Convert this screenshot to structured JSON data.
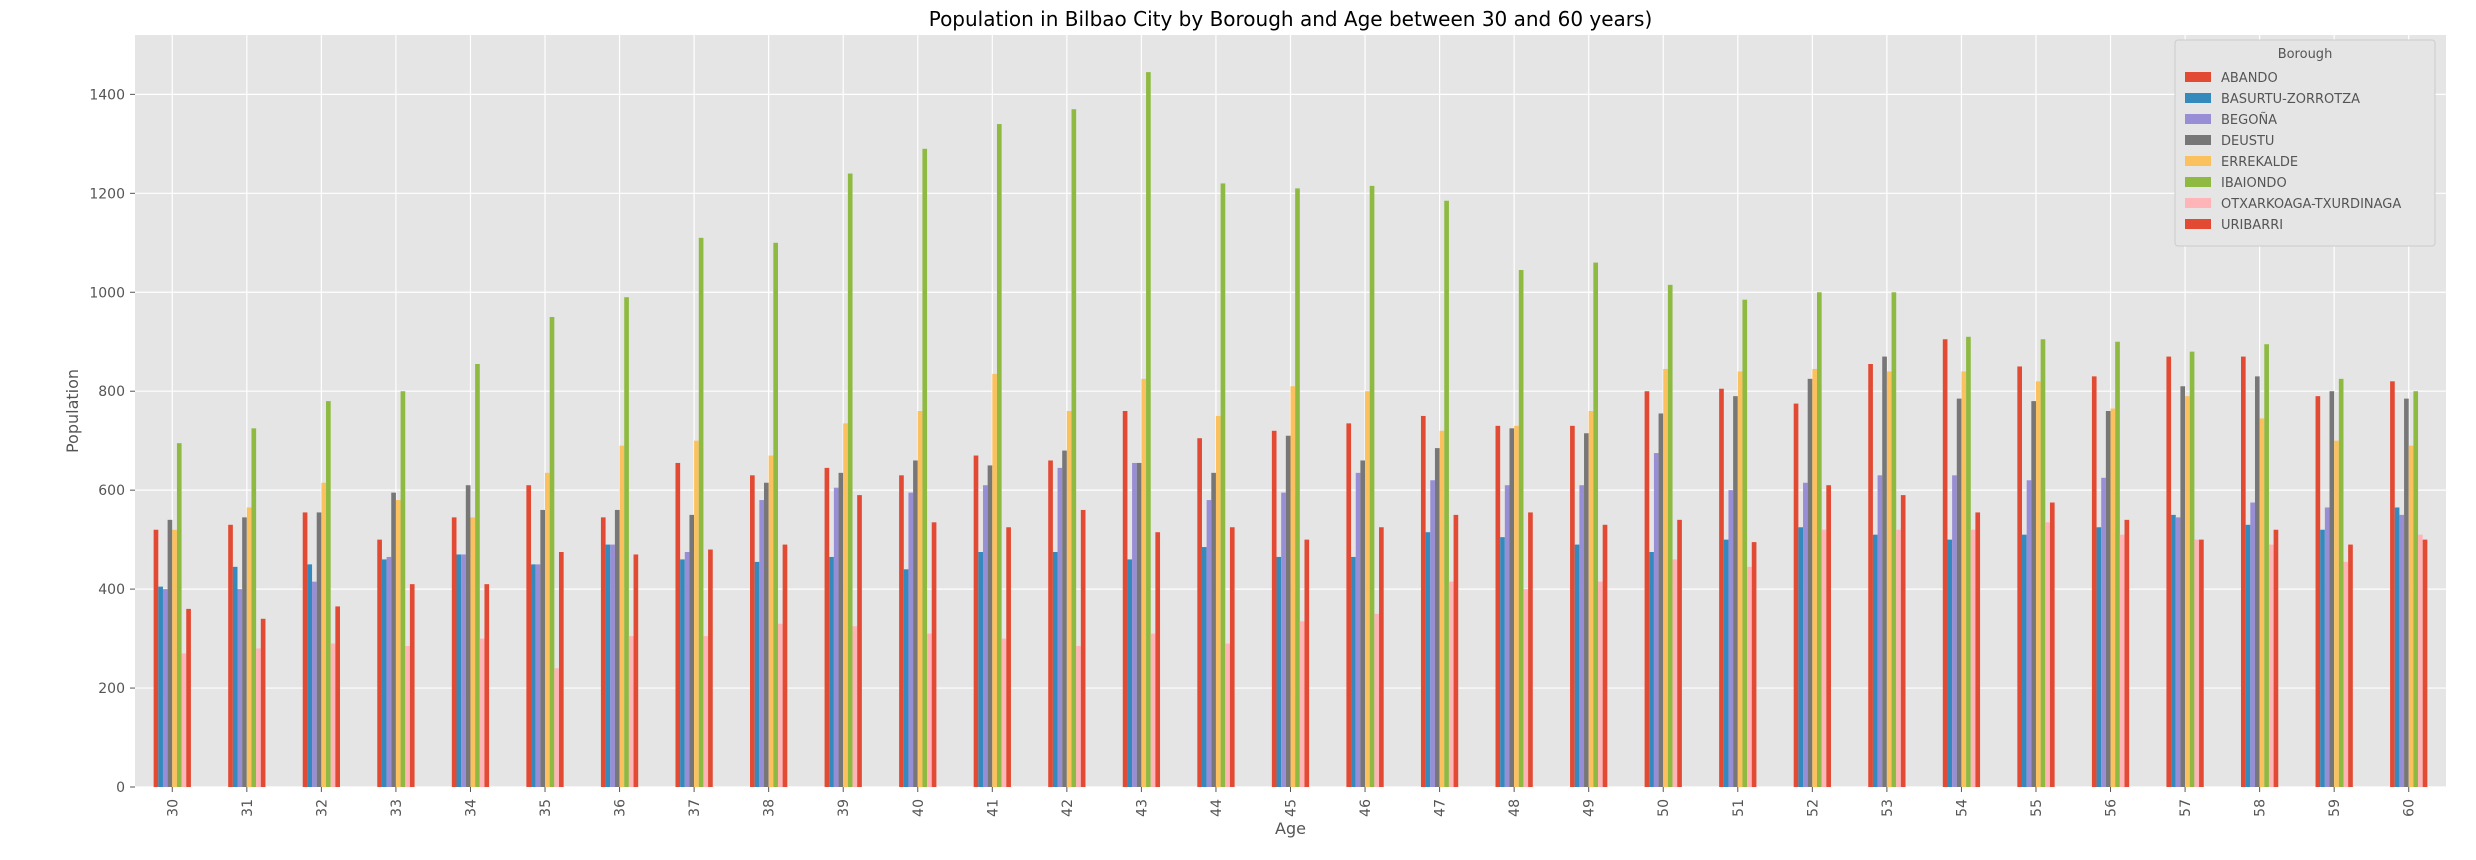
{
  "chart_data": {
    "type": "bar",
    "title": "Population in Bilbao City by Borough and Age between 30 and 60 years)",
    "xlabel": "Age",
    "ylabel": "Population",
    "ylim": [
      0,
      1520
    ],
    "yticks": [
      0,
      200,
      400,
      600,
      800,
      1000,
      1200,
      1400
    ],
    "grid": true,
    "legend_title": "Borough",
    "legend_position": "top-right",
    "categories": [
      "30",
      "31",
      "32",
      "33",
      "34",
      "35",
      "36",
      "37",
      "38",
      "39",
      "40",
      "41",
      "42",
      "43",
      "44",
      "45",
      "46",
      "47",
      "48",
      "49",
      "50",
      "51",
      "52",
      "53",
      "54",
      "55",
      "56",
      "57",
      "58",
      "59",
      "60"
    ],
    "series": [
      {
        "name": "ABANDO",
        "color": "#E24A33",
        "values": [
          520,
          530,
          555,
          500,
          545,
          610,
          545,
          655,
          630,
          645,
          630,
          670,
          660,
          760,
          705,
          720,
          735,
          750,
          730,
          730,
          800,
          805,
          775,
          855,
          905,
          850,
          830,
          870,
          870,
          790,
          820
        ]
      },
      {
        "name": "BASURTU-ZORROTZA",
        "color": "#348ABD",
        "values": [
          405,
          445,
          450,
          460,
          470,
          450,
          490,
          460,
          455,
          465,
          440,
          475,
          475,
          460,
          485,
          465,
          465,
          515,
          505,
          490,
          475,
          500,
          525,
          510,
          500,
          510,
          525,
          550,
          530,
          520,
          565
        ]
      },
      {
        "name": "BEGOÑA",
        "color": "#988ED5",
        "values": [
          400,
          400,
          415,
          465,
          470,
          450,
          490,
          475,
          580,
          605,
          595,
          610,
          645,
          655,
          580,
          595,
          635,
          620,
          610,
          610,
          675,
          600,
          615,
          630,
          630,
          620,
          625,
          545,
          575,
          565,
          550
        ]
      },
      {
        "name": "DEUSTU",
        "color": "#777777",
        "values": [
          540,
          545,
          555,
          595,
          610,
          560,
          560,
          550,
          615,
          635,
          660,
          650,
          680,
          655,
          635,
          710,
          660,
          685,
          725,
          715,
          755,
          790,
          825,
          870,
          785,
          780,
          760,
          810,
          830,
          800,
          785
        ]
      },
      {
        "name": "ERREKALDE",
        "color": "#FBC15E",
        "values": [
          520,
          565,
          615,
          580,
          545,
          635,
          690,
          700,
          670,
          735,
          760,
          835,
          760,
          825,
          750,
          810,
          800,
          720,
          730,
          760,
          845,
          840,
          845,
          840,
          840,
          820,
          765,
          790,
          745,
          700,
          690
        ]
      },
      {
        "name": "IBAIONDO",
        "color": "#8EBA42",
        "values": [
          695,
          725,
          780,
          800,
          855,
          950,
          990,
          1110,
          1100,
          1240,
          1290,
          1340,
          1370,
          1445,
          1220,
          1210,
          1215,
          1185,
          1045,
          1060,
          1015,
          985,
          1000,
          1000,
          910,
          905,
          900,
          880,
          895,
          825,
          800
        ]
      },
      {
        "name": "OTXARKOAGA-TXURDINAGA",
        "color": "#FFB5B8",
        "values": [
          270,
          280,
          290,
          285,
          300,
          240,
          305,
          305,
          330,
          325,
          310,
          300,
          285,
          310,
          290,
          335,
          350,
          415,
          400,
          415,
          460,
          445,
          520,
          520,
          520,
          535,
          510,
          500,
          490,
          455,
          510
        ]
      },
      {
        "name": "URIBARRI",
        "color": "#E24A33",
        "values": [
          360,
          340,
          365,
          410,
          410,
          475,
          470,
          480,
          490,
          590,
          535,
          525,
          560,
          515,
          525,
          500,
          525,
          550,
          555,
          530,
          540,
          495,
          610,
          590,
          555,
          575,
          540,
          500,
          520,
          490,
          500
        ]
      }
    ]
  }
}
